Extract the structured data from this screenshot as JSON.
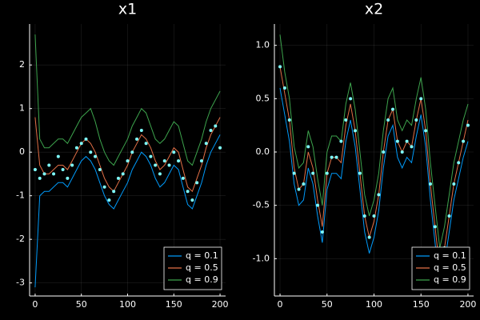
{
  "chart_data": [
    {
      "type": "line",
      "title": "x1",
      "x": [
        0,
        5,
        10,
        15,
        20,
        25,
        30,
        35,
        40,
        45,
        50,
        55,
        60,
        65,
        70,
        75,
        80,
        85,
        90,
        95,
        100,
        105,
        110,
        115,
        120,
        125,
        130,
        135,
        140,
        145,
        150,
        155,
        160,
        165,
        170,
        175,
        180,
        185,
        190,
        195,
        200
      ],
      "series": [
        {
          "name": "q = 0.1",
          "color": "#009af9",
          "values": [
            -3.1,
            -1.0,
            -0.9,
            -0.9,
            -0.8,
            -0.7,
            -0.7,
            -0.8,
            -0.6,
            -0.4,
            -0.2,
            -0.1,
            -0.2,
            -0.4,
            -0.7,
            -1.0,
            -1.2,
            -1.3,
            -1.1,
            -0.9,
            -0.7,
            -0.4,
            -0.2,
            0.0,
            -0.1,
            -0.3,
            -0.6,
            -0.8,
            -0.7,
            -0.5,
            -0.3,
            -0.4,
            -0.8,
            -1.2,
            -1.3,
            -1.0,
            -0.7,
            -0.3,
            0.0,
            0.2,
            0.4
          ]
        },
        {
          "name": "q = 0.5",
          "color": "#e26f46",
          "values": [
            0.8,
            -0.3,
            -0.5,
            -0.5,
            -0.4,
            -0.3,
            -0.3,
            -0.4,
            -0.2,
            0.0,
            0.2,
            0.3,
            0.2,
            0.0,
            -0.3,
            -0.6,
            -0.8,
            -0.9,
            -0.7,
            -0.5,
            -0.3,
            0.0,
            0.2,
            0.4,
            0.3,
            0.1,
            -0.2,
            -0.4,
            -0.3,
            -0.1,
            0.1,
            0.0,
            -0.4,
            -0.8,
            -0.9,
            -0.6,
            -0.3,
            0.1,
            0.4,
            0.6,
            0.8
          ]
        },
        {
          "name": "q = 0.9",
          "color": "#3da44d",
          "values": [
            2.7,
            0.3,
            0.1,
            0.1,
            0.2,
            0.3,
            0.3,
            0.2,
            0.4,
            0.6,
            0.8,
            0.9,
            1.0,
            0.7,
            0.3,
            0.0,
            -0.2,
            -0.3,
            -0.1,
            0.1,
            0.3,
            0.6,
            0.8,
            1.0,
            0.9,
            0.6,
            0.3,
            0.2,
            0.3,
            0.5,
            0.7,
            0.6,
            0.2,
            -0.2,
            -0.3,
            0.0,
            0.3,
            0.7,
            1.0,
            1.2,
            1.4
          ]
        }
      ],
      "points": {
        "color": "#7fffff",
        "values": [
          -0.4,
          -0.6,
          -0.5,
          -0.3,
          -0.5,
          -0.1,
          -0.4,
          -0.6,
          -0.3,
          0.1,
          0.2,
          0.3,
          0.0,
          -0.1,
          -0.4,
          -0.8,
          -1.1,
          -0.9,
          -0.6,
          -0.5,
          -0.2,
          0.0,
          0.3,
          0.5,
          0.2,
          -0.1,
          -0.3,
          -0.5,
          -0.2,
          -0.3,
          0.0,
          -0.2,
          -0.6,
          -0.9,
          -1.1,
          -0.7,
          -0.2,
          0.2,
          0.5,
          0.6,
          0.1
        ]
      },
      "xlim": [
        -6,
        206
      ],
      "xticks": [
        0,
        50,
        100,
        150,
        200
      ],
      "ylim": [
        -3.3,
        2.94
      ],
      "yticks": [
        -3,
        -2,
        -1,
        0,
        1,
        2
      ],
      "grid": true,
      "legend": "bottom right"
    },
    {
      "type": "line",
      "title": "x2",
      "x": [
        0,
        5,
        10,
        15,
        20,
        25,
        30,
        35,
        40,
        45,
        50,
        55,
        60,
        65,
        70,
        75,
        80,
        85,
        90,
        95,
        100,
        105,
        110,
        115,
        120,
        125,
        130,
        135,
        140,
        145,
        150,
        155,
        160,
        165,
        170,
        175,
        180,
        185,
        190,
        195,
        200
      ],
      "series": [
        {
          "name": "q = 0.1",
          "color": "#009af9",
          "values": [
            0.6,
            0.35,
            0.1,
            -0.3,
            -0.5,
            -0.45,
            -0.15,
            -0.3,
            -0.6,
            -0.85,
            -0.35,
            -0.2,
            -0.2,
            -0.25,
            0.1,
            0.3,
            0.05,
            -0.35,
            -0.75,
            -0.95,
            -0.8,
            -0.55,
            -0.15,
            0.15,
            0.25,
            -0.05,
            -0.15,
            -0.05,
            -0.1,
            0.15,
            0.35,
            0.05,
            -0.45,
            -0.85,
            -1.25,
            -1.05,
            -0.75,
            -0.45,
            -0.25,
            -0.05,
            0.1
          ]
        },
        {
          "name": "q = 0.5",
          "color": "#e26f46",
          "values": [
            0.8,
            0.55,
            0.3,
            -0.15,
            -0.35,
            -0.3,
            0.0,
            -0.15,
            -0.45,
            -0.7,
            -0.2,
            -0.05,
            -0.05,
            -0.1,
            0.25,
            0.45,
            0.2,
            -0.2,
            -0.6,
            -0.8,
            -0.65,
            -0.4,
            0.0,
            0.3,
            0.4,
            0.1,
            0.0,
            0.1,
            0.05,
            0.3,
            0.5,
            0.2,
            -0.3,
            -0.7,
            -1.1,
            -0.9,
            -0.6,
            -0.3,
            -0.1,
            0.1,
            0.3
          ]
        },
        {
          "name": "q = 0.9",
          "color": "#3da44d",
          "values": [
            1.1,
            0.75,
            0.5,
            0.05,
            -0.15,
            -0.1,
            0.2,
            0.05,
            -0.25,
            -0.5,
            0.0,
            0.15,
            0.15,
            0.1,
            0.45,
            0.65,
            0.4,
            0.0,
            -0.4,
            -0.6,
            -0.45,
            -0.2,
            0.2,
            0.5,
            0.6,
            0.3,
            0.2,
            0.3,
            0.25,
            0.5,
            0.7,
            0.4,
            -0.1,
            -0.5,
            -0.9,
            -0.7,
            -0.4,
            -0.1,
            0.1,
            0.3,
            0.45
          ]
        }
      ],
      "points": {
        "color": "#7fffff",
        "values": [
          0.8,
          0.6,
          0.3,
          -0.2,
          -0.35,
          -0.3,
          0.05,
          -0.2,
          -0.5,
          -0.75,
          -0.2,
          -0.05,
          -0.05,
          0.1,
          0.3,
          0.5,
          0.2,
          -0.2,
          -0.6,
          -0.8,
          -0.6,
          -0.4,
          0.0,
          0.3,
          0.4,
          0.1,
          0.0,
          0.1,
          0.05,
          0.3,
          0.5,
          0.2,
          -0.3,
          -0.7,
          -1.1,
          -0.9,
          -0.6,
          -0.3,
          -0.1,
          0.1,
          0.25
        ]
      },
      "xlim": [
        -6,
        206
      ],
      "xticks": [
        0,
        50,
        100,
        150,
        200
      ],
      "ylim": [
        -1.35,
        1.2
      ],
      "yticks": [
        {
          "value": -1,
          "label": "-1.0"
        },
        -0.5,
        {
          "value": 0,
          "label": "0.0"
        },
        0.5,
        {
          "value": 1,
          "label": "1.0"
        }
      ],
      "grid": true,
      "legend": "bottom right"
    }
  ]
}
